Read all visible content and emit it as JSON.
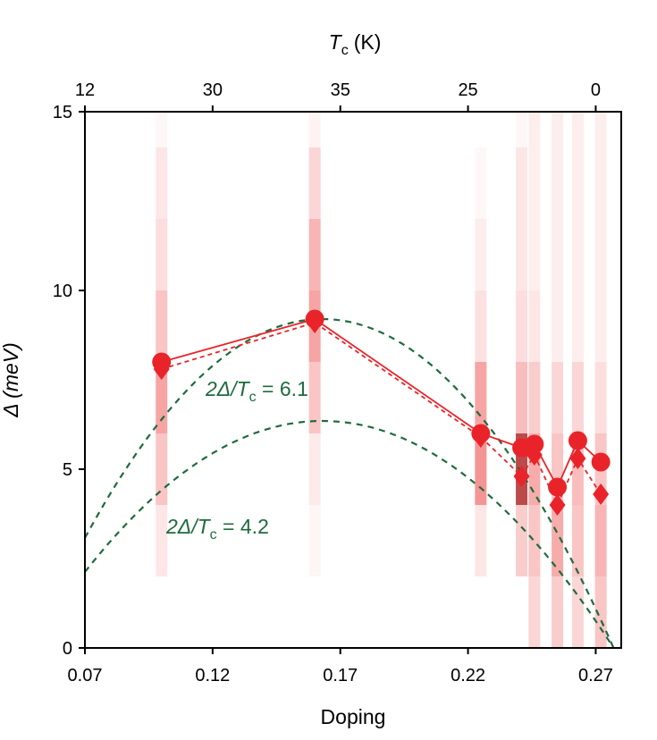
{
  "chart_data": {
    "type": "scatter",
    "xlabel": "Doping",
    "ylabel": "Δ (meV)",
    "top_xlabel": "T",
    "top_xlabel_sub": "c",
    "top_xlabel_unit": "(K)",
    "xlim": [
      0.07,
      0.28
    ],
    "ylim": [
      0,
      15
    ],
    "x_ticks": [
      0.07,
      0.12,
      0.17,
      0.22,
      0.27
    ],
    "x_tick_labels": [
      "0.07",
      "0.12",
      "0.17",
      "0.22",
      "0.27"
    ],
    "y_ticks": [
      0,
      5,
      10,
      15
    ],
    "y_tick_labels": [
      "0",
      "5",
      "10",
      "15"
    ],
    "top_ticks": [
      {
        "doping": 0.07,
        "label": "12"
      },
      {
        "doping": 0.12,
        "label": "30"
      },
      {
        "doping": 0.17,
        "label": "35"
      },
      {
        "doping": 0.22,
        "label": "25"
      },
      {
        "doping": 0.27,
        "label": "0"
      }
    ],
    "grid": false,
    "series": [
      {
        "marker": "circle",
        "line": "solid",
        "color": "#e8242a",
        "x": [
          0.1,
          0.16,
          0.225,
          0.241,
          0.246,
          0.255,
          0.263,
          0.272
        ],
        "y": [
          8.0,
          9.2,
          6.0,
          5.6,
          5.7,
          4.5,
          5.8,
          5.2
        ]
      },
      {
        "marker": "diamond",
        "line": "dashed",
        "color": "#e8242a",
        "x": [
          0.1,
          0.16,
          0.225,
          0.241,
          0.246,
          0.255,
          0.263,
          0.272
        ],
        "y": [
          7.8,
          9.1,
          5.9,
          4.8,
          5.4,
          4.0,
          5.3,
          4.3
        ]
      }
    ],
    "gap_distribution_columns": [
      {
        "x": 0.1,
        "bins": [
          [
            2,
            4,
            0.15
          ],
          [
            4,
            6,
            0.35
          ],
          [
            6,
            8,
            0.55
          ],
          [
            8,
            10,
            0.35
          ],
          [
            10,
            12,
            0.2
          ],
          [
            12,
            14,
            0.15
          ],
          [
            14,
            15,
            0.05
          ]
        ]
      },
      {
        "x": 0.16,
        "bins": [
          [
            2,
            4,
            0.06
          ],
          [
            4,
            6,
            0.12
          ],
          [
            6,
            8,
            0.35
          ],
          [
            8,
            10,
            0.55
          ],
          [
            10,
            12,
            0.45
          ],
          [
            12,
            14,
            0.25
          ],
          [
            14,
            15,
            0.08
          ]
        ]
      },
      {
        "x": 0.225,
        "bins": [
          [
            2,
            4,
            0.15
          ],
          [
            4,
            6,
            0.65
          ],
          [
            6,
            8,
            0.55
          ],
          [
            8,
            10,
            0.18
          ],
          [
            10,
            12,
            0.1
          ],
          [
            12,
            14,
            0.05
          ]
        ]
      },
      {
        "x": 0.241,
        "bins": [
          [
            2,
            4,
            0.3
          ],
          [
            4,
            6,
            0.9
          ],
          [
            6,
            8,
            0.4
          ],
          [
            8,
            10,
            0.2
          ],
          [
            10,
            14,
            0.15
          ],
          [
            14,
            15,
            0.05
          ]
        ]
      },
      {
        "x": 0.246,
        "bins": [
          [
            0,
            2,
            0.25
          ],
          [
            2,
            4,
            0.35
          ],
          [
            4,
            6,
            0.5
          ],
          [
            6,
            8,
            0.3
          ],
          [
            8,
            10,
            0.15
          ],
          [
            10,
            15,
            0.1
          ]
        ]
      },
      {
        "x": 0.255,
        "bins": [
          [
            0,
            2,
            0.3
          ],
          [
            2,
            4,
            0.5
          ],
          [
            4,
            6,
            0.35
          ],
          [
            6,
            8,
            0.25
          ],
          [
            8,
            15,
            0.1
          ]
        ]
      },
      {
        "x": 0.263,
        "bins": [
          [
            0,
            2,
            0.25
          ],
          [
            2,
            4,
            0.35
          ],
          [
            4,
            6,
            0.4
          ],
          [
            6,
            8,
            0.25
          ],
          [
            8,
            15,
            0.1
          ]
        ]
      },
      {
        "x": 0.272,
        "bins": [
          [
            0,
            2,
            0.35
          ],
          [
            2,
            4,
            0.45
          ],
          [
            4,
            6,
            0.35
          ],
          [
            6,
            8,
            0.2
          ],
          [
            8,
            15,
            0.1
          ]
        ]
      }
    ],
    "annotations": [
      {
        "text_main": "2Δ/T",
        "text_sub": "c",
        "text_rest": " = 6.1",
        "color": "#1e6b3c"
      },
      {
        "text_main": "2Δ/T",
        "text_sub": "c",
        "text_rest": " = 4.2",
        "color": "#1e6b3c"
      }
    ],
    "fit_curves": [
      {
        "style": "dashed",
        "color": "#1e6b3c",
        "peak_x": 0.163,
        "peak_y": 9.2,
        "zero_x": 0.277
      },
      {
        "style": "dashed",
        "color": "#1e6b3c",
        "peak_x": 0.163,
        "peak_y": 6.35,
        "zero_x": 0.277
      }
    ]
  }
}
